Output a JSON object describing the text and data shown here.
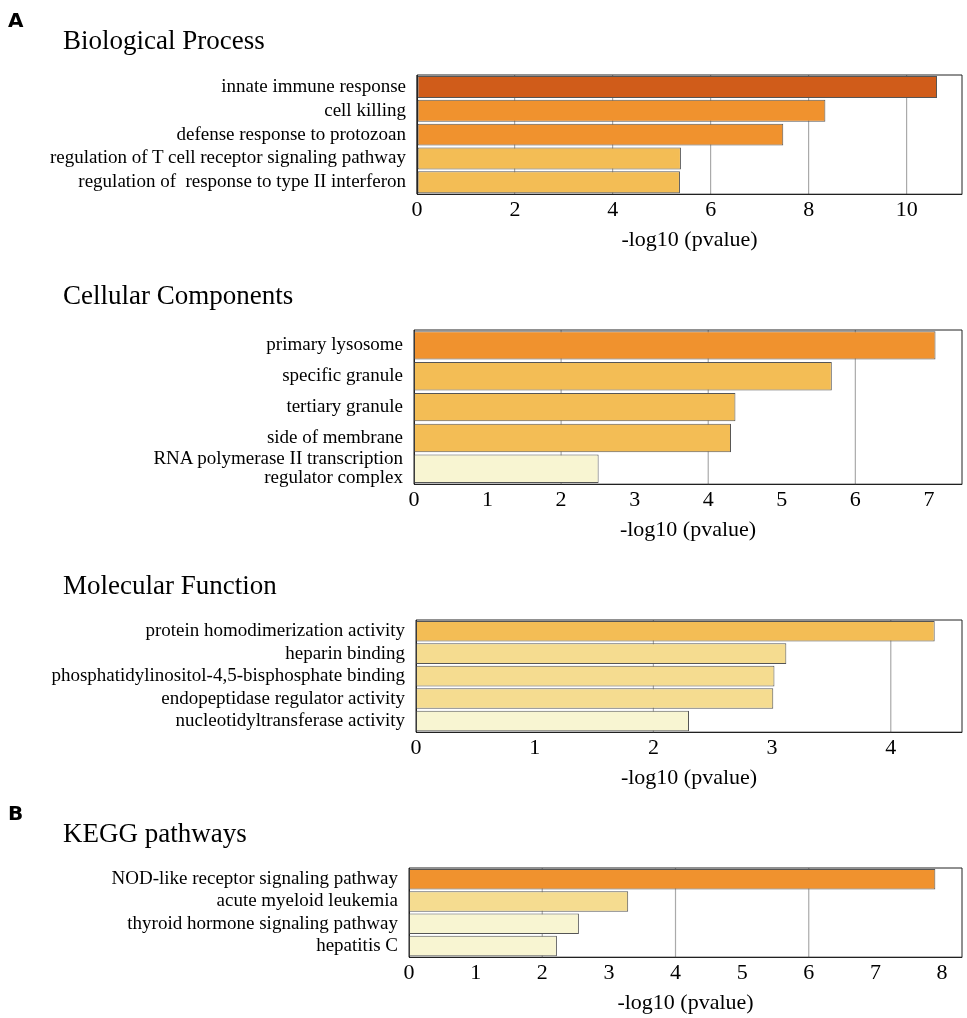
{
  "chart_data": [
    {
      "type": "bar",
      "orientation": "horizontal",
      "title": "Biological Process",
      "xlabel": "-log10 (pvalue)",
      "annotations": [
        "A"
      ],
      "categories": [
        "innate immune response",
        "cell killing",
        "defense response to protozoan",
        "regulation of T cell receptor signaling pathway",
        "regulation of  response to type II interferon"
      ],
      "values": [
        10.62,
        8.34,
        7.48,
        5.39,
        5.37
      ],
      "colors": [
        "#d05c1a",
        "#f0922e",
        "#f0922e",
        "#f3bd55",
        "#f3bd55"
      ],
      "xlim": [
        0,
        11.13
      ],
      "xticks": [
        0,
        2,
        4,
        6,
        8,
        10
      ],
      "grid": "x"
    },
    {
      "type": "bar",
      "orientation": "horizontal",
      "title": "Cellular Components",
      "xlabel": "-log10 (pvalue)",
      "categories": [
        "primary lysosome",
        "specific granule",
        "tertiary granule",
        "side of membrane",
        "RNA polymerase II transcription\nregulator complex"
      ],
      "values": [
        7.09,
        5.68,
        4.37,
        4.31,
        2.51
      ],
      "colors": [
        "#f0922e",
        "#f3bd55",
        "#f3bd55",
        "#f3bd55",
        "#f8f5d2"
      ],
      "xlim": [
        0,
        7.45
      ],
      "xticks": [
        0,
        1,
        2,
        3,
        4,
        5,
        6,
        7
      ],
      "ref_lines": [
        {
          "axis": "x",
          "value": 2,
          "color": "#aaaaaa"
        },
        {
          "axis": "x",
          "value": 4,
          "color": "#aaaaaa"
        },
        {
          "axis": "x",
          "value": 6,
          "color": "#aaaaaa"
        }
      ]
    },
    {
      "type": "bar",
      "orientation": "horizontal",
      "title": "Molecular Function",
      "xlabel": "-log10 (pvalue)",
      "categories": [
        "protein homodimerization activity",
        "heparin binding",
        "phosphatidylinositol-4,5-bisphosphate binding",
        "endopeptidase regulator activity",
        "nucleotidyltransferase activity"
      ],
      "values": [
        4.37,
        3.12,
        3.02,
        3.01,
        2.3
      ],
      "colors": [
        "#f3bd55",
        "#f5dc90",
        "#f5dc90",
        "#f5dc90",
        "#f8f5d2"
      ],
      "xlim": [
        0,
        4.6
      ],
      "xticks": [
        0,
        1,
        2,
        3,
        4
      ],
      "ref_lines": [
        {
          "axis": "x",
          "value": 2,
          "color": "#aaaaaa"
        },
        {
          "axis": "x",
          "value": 4,
          "color": "#aaaaaa"
        }
      ]
    },
    {
      "type": "bar",
      "orientation": "horizontal",
      "title": "KEGG pathways",
      "xlabel": "-log10 (pvalue)",
      "annotations": [
        "B"
      ],
      "categories": [
        "NOD-like receptor signaling pathway",
        "acute myeloid leukemia",
        "thyroid hormone signaling pathway",
        "hepatitis C"
      ],
      "values": [
        7.9,
        3.29,
        2.55,
        2.22
      ],
      "colors": [
        "#f0922e",
        "#f5dc90",
        "#f8f5d2",
        "#f8f5d2"
      ],
      "xlim": [
        0,
        8.3
      ],
      "xticks": [
        0,
        1,
        2,
        3,
        4,
        5,
        6,
        7,
        8
      ],
      "ref_lines": [
        {
          "axis": "x",
          "value": 2,
          "color": "#aaaaaa"
        },
        {
          "axis": "x",
          "value": 4,
          "color": "#aaaaaa"
        },
        {
          "axis": "x",
          "value": 6,
          "color": "#aaaaaa"
        }
      ]
    }
  ]
}
